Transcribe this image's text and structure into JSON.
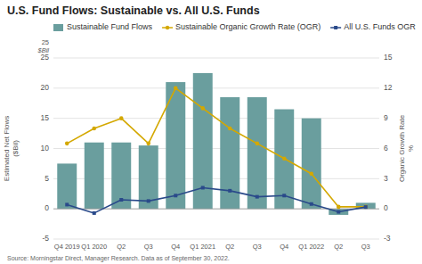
{
  "chart_data": {
    "type": "bar",
    "title": "U.S. Fund Flows: Sustainable vs. All U.S. Funds",
    "source": "Source: Morningstar Direct, Manager Research. Data as of September 30, 2022.",
    "annotations": [
      "25",
      "$Bil"
    ],
    "categories": [
      "Q4 2019",
      "Q1 2020",
      "Q2",
      "Q3",
      "Q4",
      "Q1 2021",
      "Q2",
      "Q3",
      "Q4",
      "Q1 2022",
      "Q2",
      "Q3"
    ],
    "series": [
      {
        "name": "Sustainable Fund Flows",
        "type": "bar",
        "color": "#6a9e9e",
        "values": [
          7.5,
          11.0,
          11.0,
          10.5,
          21.0,
          22.5,
          18.5,
          18.5,
          16.5,
          15.0,
          -1.0,
          1.0
        ]
      },
      {
        "name": "Sustainable Organic Growth Rate (OGR)",
        "type": "line",
        "axis": "y2",
        "color": "#d4a800",
        "marker": "circle",
        "values": [
          6.5,
          8.0,
          9.0,
          6.5,
          12.0,
          10.0,
          8.0,
          6.5,
          5.0,
          3.5,
          0.2,
          0.2
        ]
      },
      {
        "name": "All U.S. Funds OGR",
        "type": "line",
        "color": "#2a4a8a",
        "marker": "square",
        "values": [
          0.7,
          -0.7,
          1.5,
          1.3,
          2.2,
          3.5,
          3.0,
          2.0,
          2.2,
          0.8,
          -0.5,
          0.3
        ]
      }
    ],
    "ylabel": "Estimated Net Flows\n($Bil)",
    "y2label": "Organic Growth Rate\n%",
    "ylim": [
      -5,
      25
    ],
    "yticks": [
      -5,
      0,
      5,
      10,
      15,
      20,
      25
    ],
    "y2lim": [
      -3,
      15
    ],
    "y2ticks": [
      -3,
      0,
      3,
      6,
      9,
      12,
      15
    ],
    "grid": true,
    "legend": "top-left"
  }
}
